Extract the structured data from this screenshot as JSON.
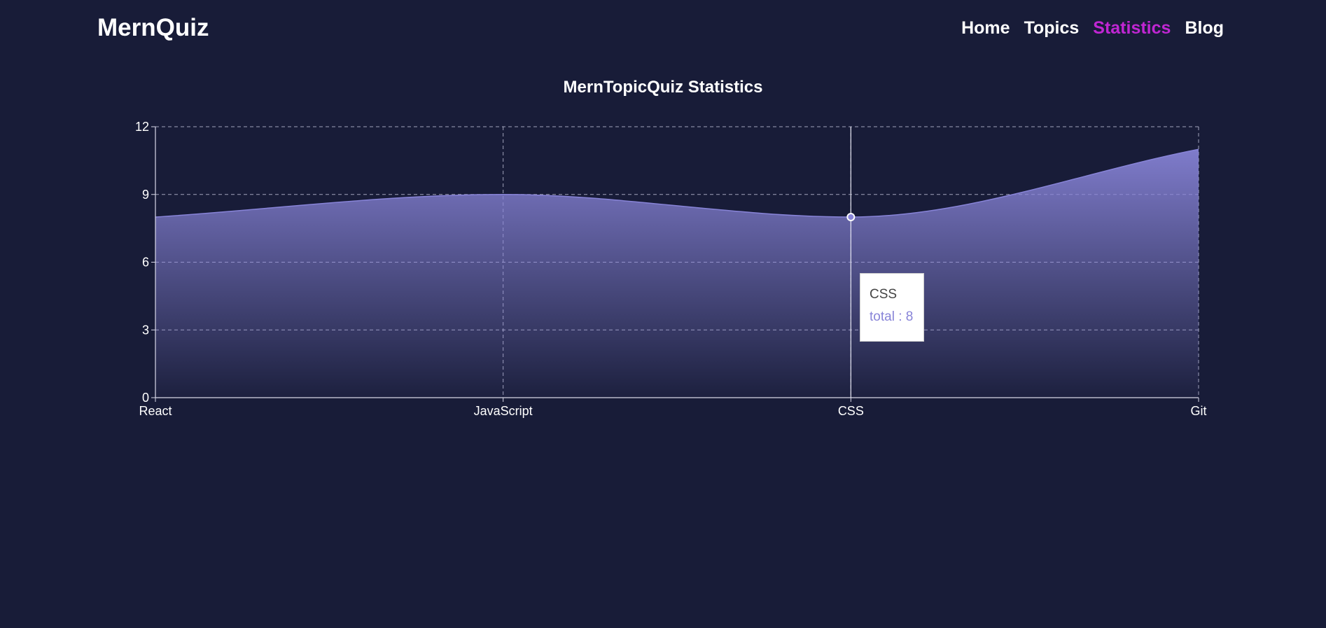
{
  "navbar": {
    "brand": "MernQuiz",
    "links": [
      {
        "label": "Home",
        "active": false
      },
      {
        "label": "Topics",
        "active": false
      },
      {
        "label": "Statistics",
        "active": true
      },
      {
        "label": "Blog",
        "active": false
      }
    ]
  },
  "colors": {
    "background": "#181c38",
    "accent": "#c026d3",
    "area": "#8884d8"
  },
  "chart_data": {
    "type": "area",
    "title": "MernTopicQuiz Statistics",
    "categories": [
      "React",
      "JavaScript",
      "CSS",
      "Git"
    ],
    "series": [
      {
        "name": "total",
        "values": [
          8,
          9,
          8,
          11
        ]
      }
    ],
    "ylim": [
      0,
      12
    ],
    "yticks": [
      0,
      3,
      6,
      9,
      12
    ],
    "grid": true,
    "tooltip": {
      "label": "CSS",
      "text": "total : 8"
    }
  }
}
